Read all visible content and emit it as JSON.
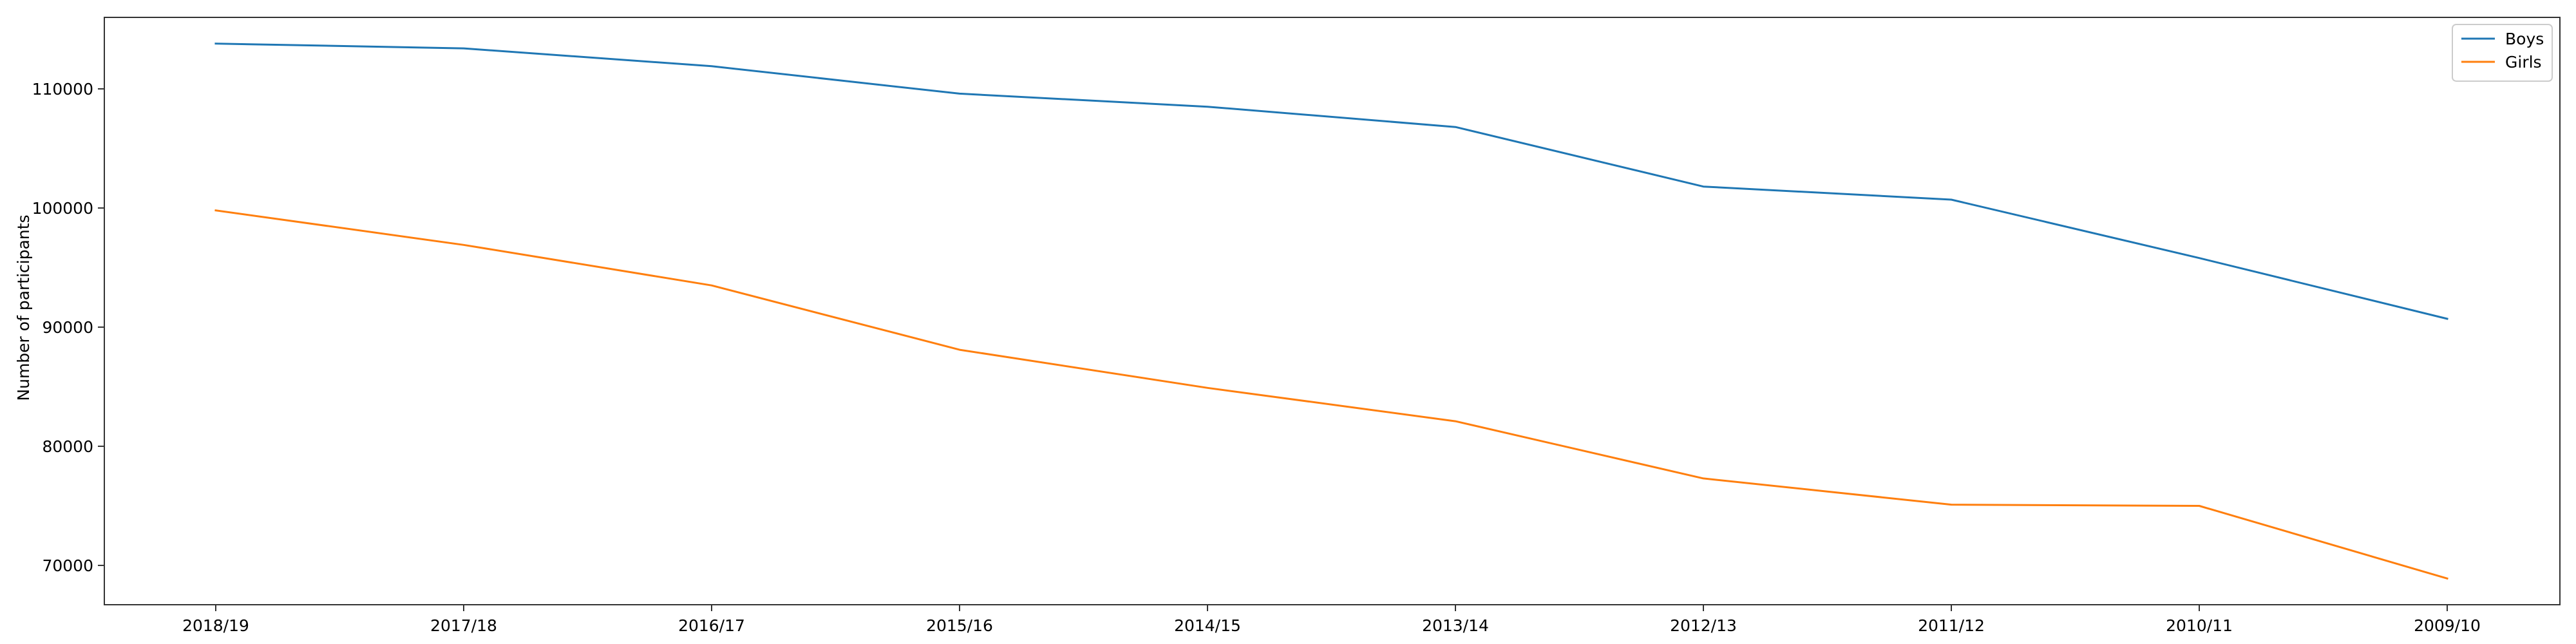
{
  "chart_data": {
    "type": "line",
    "title": "",
    "xlabel": "",
    "ylabel": "Number of participants",
    "categories": [
      "2018/19",
      "2017/18",
      "2016/17",
      "2015/16",
      "2014/15",
      "2013/14",
      "2012/13",
      "2011/12",
      "2010/11",
      "2009/10"
    ],
    "ylim": [
      66700,
      116000
    ],
    "yticks": [
      70000,
      80000,
      90000,
      100000,
      110000
    ],
    "grid": false,
    "legend_position": "top-right",
    "series": [
      {
        "name": "Boys",
        "color": "#1f77b4",
        "values": [
          113800,
          113400,
          111900,
          109600,
          108500,
          106800,
          101800,
          100700,
          95800,
          90700
        ]
      },
      {
        "name": "Girls",
        "color": "#ff7f0e",
        "values": [
          99800,
          96900,
          93500,
          88100,
          84900,
          82100,
          77300,
          75100,
          75000,
          68900
        ]
      }
    ]
  }
}
